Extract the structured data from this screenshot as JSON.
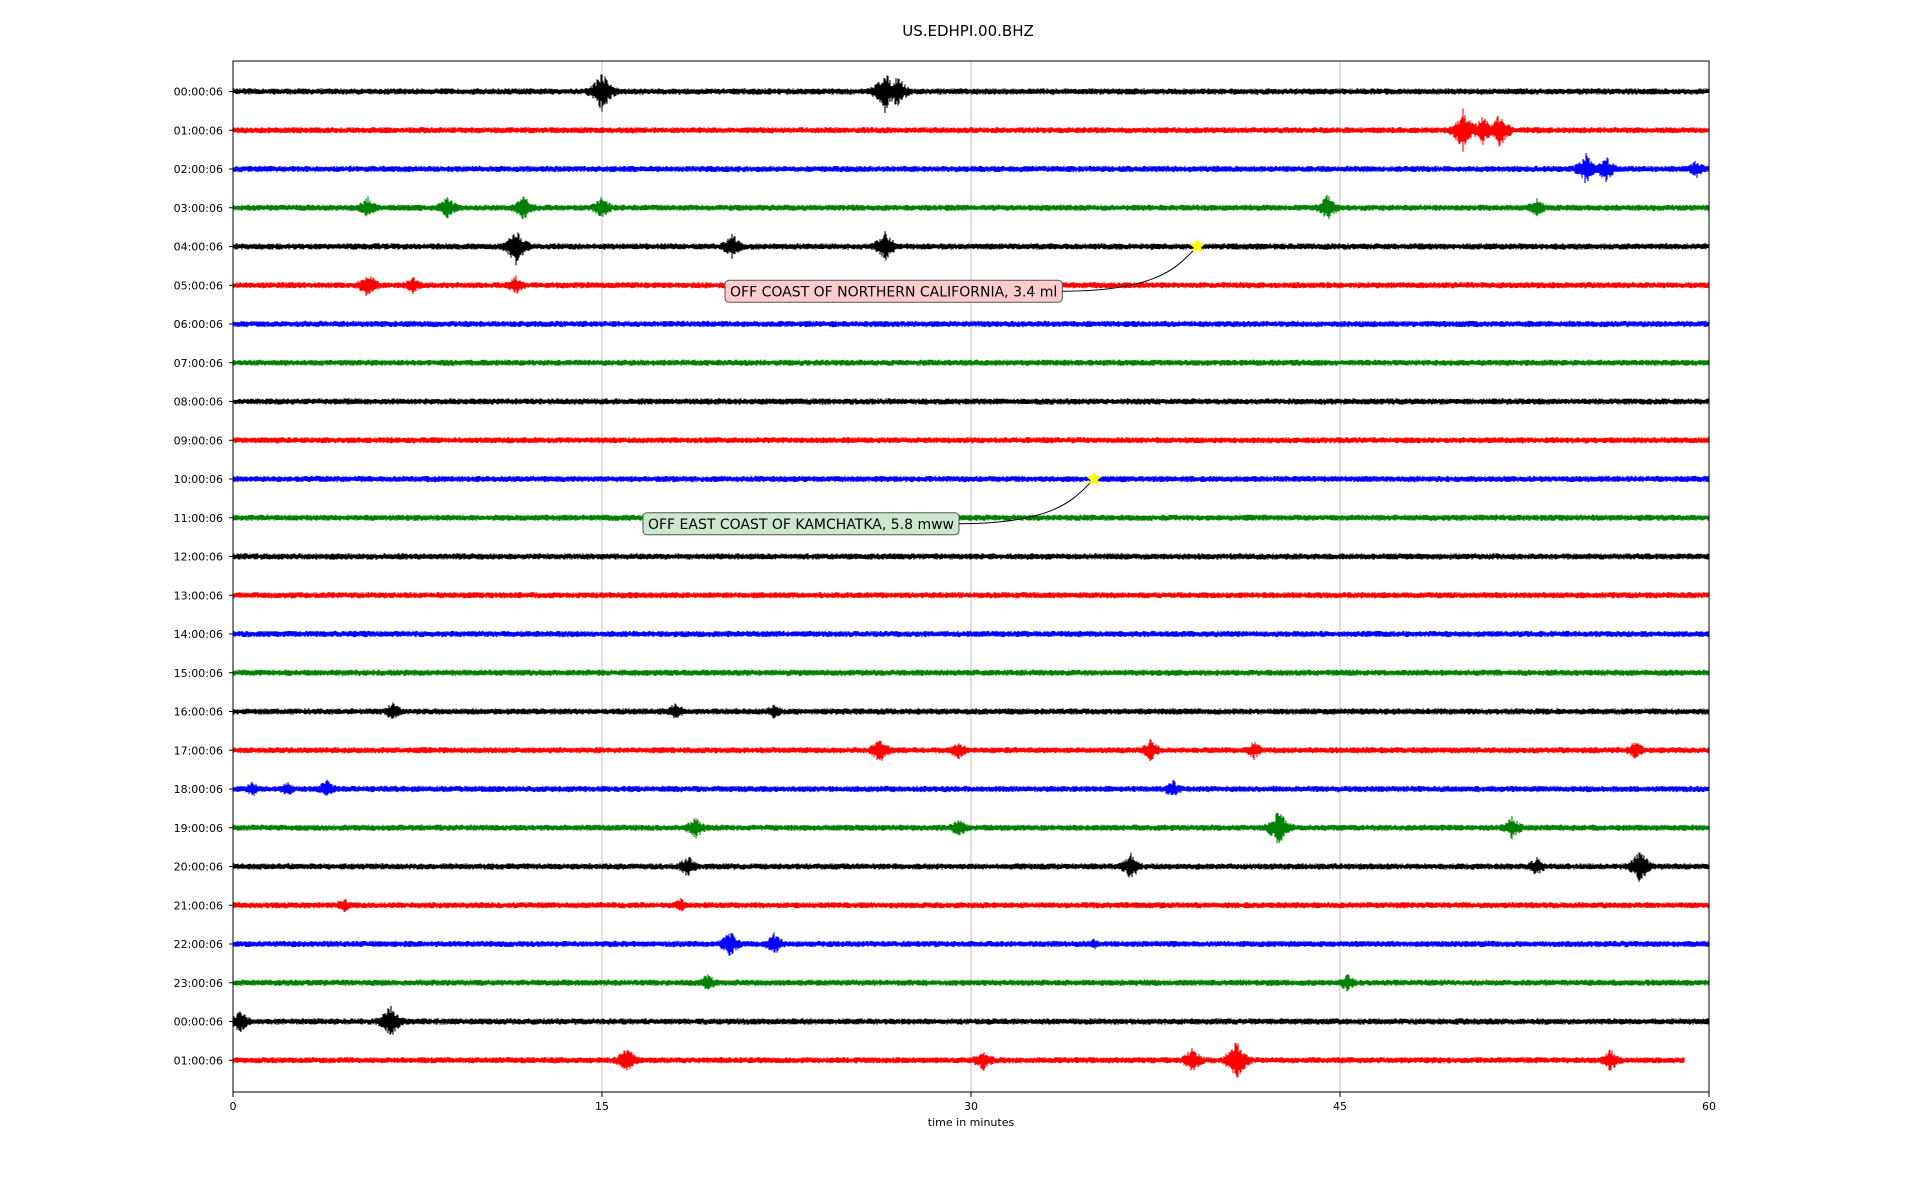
{
  "chart_data": {
    "type": "line",
    "title": "US.EDHPI.00.BHZ",
    "xlabel": "time in minutes",
    "ylabel": "",
    "xlim": [
      0,
      60
    ],
    "xticks": [
      0,
      15,
      30,
      45,
      60
    ],
    "grid_x": true,
    "colors": [
      "#000000",
      "#ff0000",
      "#0000ff",
      "#008000"
    ],
    "hour_labels": [
      "00:00:06",
      "01:00:06",
      "02:00:06",
      "03:00:06",
      "04:00:06",
      "05:00:06",
      "06:00:06",
      "07:00:06",
      "08:00:06",
      "09:00:06",
      "10:00:06",
      "11:00:06",
      "12:00:06",
      "13:00:06",
      "14:00:06",
      "15:00:06",
      "16:00:06",
      "17:00:06",
      "18:00:06",
      "19:00:06",
      "20:00:06",
      "21:00:06",
      "22:00:06",
      "23:00:06",
      "00:00:06",
      "01:00:06"
    ],
    "last_trace_end_minute": 59.0,
    "events": [
      {
        "row": 4,
        "minute": 39.2,
        "label": "OFF COAST OF NORTHERN CALIFORNIA, 3.4 ml",
        "box_color": "#ffcccc"
      },
      {
        "row": 10,
        "minute": 35.0,
        "label": "OFF EAST COAST OF KAMCHATKA, 5.8 mww",
        "box_color": "#cce8cc"
      }
    ],
    "bursts": [
      {
        "row": 0,
        "minute": 15.0,
        "amp": 22
      },
      {
        "row": 0,
        "minute": 26.5,
        "amp": 22
      },
      {
        "row": 0,
        "minute": 27.0,
        "amp": 18
      },
      {
        "row": 1,
        "minute": 50.0,
        "amp": 22
      },
      {
        "row": 1,
        "minute": 50.8,
        "amp": 16
      },
      {
        "row": 1,
        "minute": 51.5,
        "amp": 18
      },
      {
        "row": 2,
        "minute": 55.0,
        "amp": 16
      },
      {
        "row": 2,
        "minute": 55.8,
        "amp": 14
      },
      {
        "row": 2,
        "minute": 59.5,
        "amp": 10
      },
      {
        "row": 3,
        "minute": 5.5,
        "amp": 12
      },
      {
        "row": 3,
        "minute": 8.7,
        "amp": 12
      },
      {
        "row": 3,
        "minute": 11.8,
        "amp": 14
      },
      {
        "row": 3,
        "minute": 15.0,
        "amp": 12
      },
      {
        "row": 3,
        "minute": 44.5,
        "amp": 14
      },
      {
        "row": 3,
        "minute": 53.0,
        "amp": 10
      },
      {
        "row": 4,
        "minute": 11.5,
        "amp": 20
      },
      {
        "row": 4,
        "minute": 20.3,
        "amp": 14
      },
      {
        "row": 4,
        "minute": 26.5,
        "amp": 16
      },
      {
        "row": 5,
        "minute": 5.5,
        "amp": 14
      },
      {
        "row": 5,
        "minute": 7.3,
        "amp": 10
      },
      {
        "row": 5,
        "minute": 11.5,
        "amp": 10
      },
      {
        "row": 16,
        "minute": 6.5,
        "amp": 10
      },
      {
        "row": 16,
        "minute": 18.0,
        "amp": 10
      },
      {
        "row": 16,
        "minute": 22.0,
        "amp": 8
      },
      {
        "row": 17,
        "minute": 26.3,
        "amp": 14
      },
      {
        "row": 17,
        "minute": 29.5,
        "amp": 10
      },
      {
        "row": 17,
        "minute": 37.3,
        "amp": 12
      },
      {
        "row": 17,
        "minute": 41.5,
        "amp": 10
      },
      {
        "row": 17,
        "minute": 57.0,
        "amp": 10
      },
      {
        "row": 18,
        "minute": 0.8,
        "amp": 8
      },
      {
        "row": 18,
        "minute": 2.2,
        "amp": 8
      },
      {
        "row": 18,
        "minute": 3.8,
        "amp": 10
      },
      {
        "row": 18,
        "minute": 38.2,
        "amp": 10
      },
      {
        "row": 19,
        "minute": 18.8,
        "amp": 12
      },
      {
        "row": 19,
        "minute": 29.5,
        "amp": 10
      },
      {
        "row": 19,
        "minute": 42.5,
        "amp": 20
      },
      {
        "row": 19,
        "minute": 52.0,
        "amp": 12
      },
      {
        "row": 20,
        "minute": 18.5,
        "amp": 12
      },
      {
        "row": 20,
        "minute": 36.5,
        "amp": 14
      },
      {
        "row": 20,
        "minute": 53.0,
        "amp": 10
      },
      {
        "row": 20,
        "minute": 57.2,
        "amp": 18
      },
      {
        "row": 21,
        "minute": 4.5,
        "amp": 8
      },
      {
        "row": 21,
        "minute": 18.2,
        "amp": 8
      },
      {
        "row": 22,
        "minute": 20.2,
        "amp": 14
      },
      {
        "row": 22,
        "minute": 22.0,
        "amp": 12
      },
      {
        "row": 22,
        "minute": 35.0,
        "amp": 6
      },
      {
        "row": 23,
        "minute": 19.3,
        "amp": 10
      },
      {
        "row": 23,
        "minute": 45.3,
        "amp": 10
      },
      {
        "row": 24,
        "minute": 0.3,
        "amp": 12
      },
      {
        "row": 24,
        "minute": 6.4,
        "amp": 18
      },
      {
        "row": 25,
        "minute": 16.0,
        "amp": 14
      },
      {
        "row": 25,
        "minute": 30.5,
        "amp": 12
      },
      {
        "row": 25,
        "minute": 39.0,
        "amp": 14
      },
      {
        "row": 25,
        "minute": 40.8,
        "amp": 22
      },
      {
        "row": 25,
        "minute": 56.0,
        "amp": 12
      }
    ]
  }
}
